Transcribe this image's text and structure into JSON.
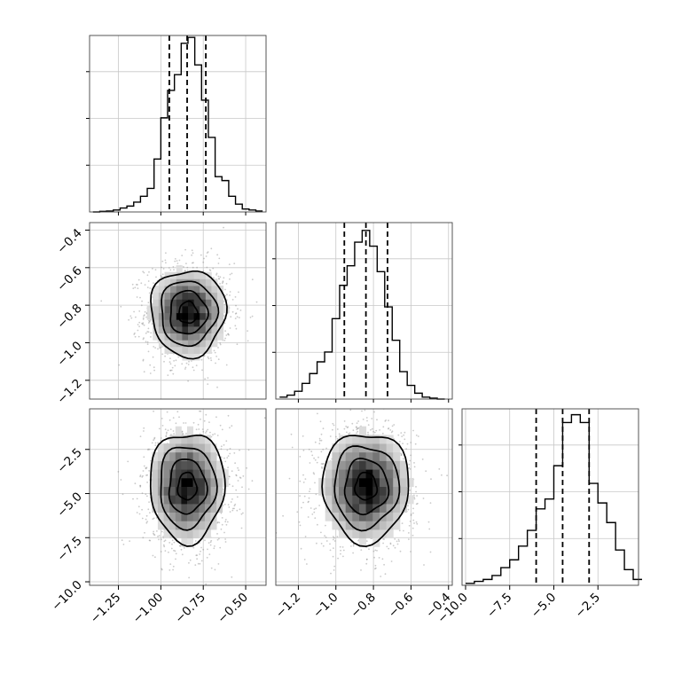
{
  "chart_data": {
    "type": "corner",
    "parameters": [
      {
        "x_range": [
          -1.42,
          -0.38
        ],
        "ticks": [
          -1.25,
          -1.0,
          -0.75,
          -0.5
        ],
        "tick_labels": [
          "−1.25",
          "−1.00",
          "−0.75",
          "−0.50"
        ]
      },
      {
        "x_range": [
          -1.32,
          -0.38
        ],
        "ticks": [
          -1.2,
          -1.0,
          -0.8,
          -0.6,
          -0.4
        ],
        "tick_labels": [
          "−1.2",
          "−1.0",
          "−0.8",
          "−0.6",
          "−0.4"
        ]
      },
      {
        "x_range": [
          -10.2,
          -0.2
        ],
        "ticks": [
          -10.0,
          -7.5,
          -5.0,
          -2.5
        ],
        "tick_labels": [
          "−10.0",
          "−7.5",
          "−5.0",
          "−2.5"
        ]
      }
    ],
    "row_axes": [
      {
        "param": 1,
        "y_range": [
          -1.3,
          -0.36
        ],
        "ticks": [
          -0.4,
          -0.6,
          -0.8,
          -1.0,
          -1.2
        ],
        "tick_labels": [
          "−0.4",
          "−0.6",
          "−0.8",
          "−1.0",
          "−1.2"
        ]
      },
      {
        "param": 2,
        "y_range": [
          -10.2,
          -0.2
        ],
        "ticks": [
          -2.5,
          -5.0,
          -7.5,
          -10.0
        ],
        "tick_labels": [
          "−2.5",
          "−5.0",
          "−7.5",
          "−10.0"
        ]
      }
    ],
    "histograms": [
      {
        "param": 0,
        "bin_edges": [
          -1.4,
          -1.36,
          -1.32,
          -1.28,
          -1.24,
          -1.2,
          -1.16,
          -1.12,
          -1.08,
          -1.04,
          -1.0,
          -0.96,
          -0.92,
          -0.88,
          -0.84,
          -0.8,
          -0.76,
          -0.72,
          -0.68,
          -0.64,
          -0.6,
          -0.56,
          -0.52,
          -0.48,
          -0.44,
          -0.4
        ],
        "counts": [
          0,
          0.3,
          0.5,
          1,
          2,
          3,
          5,
          8,
          12,
          27,
          48,
          62,
          70,
          86,
          89,
          75,
          57,
          38,
          18,
          16,
          8,
          4,
          1.5,
          1,
          0.5
        ],
        "quantiles": [
          -0.95,
          -0.845,
          -0.735
        ],
        "y_max": 90
      },
      {
        "param": 1,
        "bin_edges": [
          -1.3,
          -1.26,
          -1.22,
          -1.18,
          -1.14,
          -1.1,
          -1.06,
          -1.02,
          -0.98,
          -0.94,
          -0.9,
          -0.86,
          -0.82,
          -0.78,
          -0.74,
          -0.7,
          -0.66,
          -0.62,
          -0.58,
          -0.54,
          -0.5,
          -0.46,
          -0.42
        ],
        "counts": [
          1,
          2,
          4,
          8,
          13,
          19,
          24,
          41,
          58,
          68,
          80,
          86,
          78,
          65,
          47,
          30,
          14,
          7,
          3,
          1,
          0.5,
          0
        ],
        "quantiles": [
          -0.955,
          -0.84,
          -0.725
        ],
        "y_max": 90
      },
      {
        "param": 2,
        "bin_edges": [
          -10.0,
          -9.5,
          -9.0,
          -8.5,
          -8.0,
          -7.5,
          -7.0,
          -6.5,
          -6.0,
          -5.5,
          -5.0,
          -4.5,
          -4.0,
          -3.5,
          -3.0,
          -2.5,
          -2.0,
          -1.5,
          -1.0,
          -0.5,
          0.0
        ],
        "counts": [
          1,
          2,
          3,
          5,
          9,
          13,
          20,
          28,
          39,
          44,
          61,
          83,
          87,
          83,
          52,
          42,
          32,
          18,
          8,
          3
        ],
        "quantiles": [
          -6.0,
          -4.5,
          -3.0
        ],
        "y_max": 90
      }
    ],
    "scatter_panels": [
      {
        "x_param": 0,
        "y_param": 1,
        "center": [
          -0.84,
          -0.84
        ],
        "sigma": [
          0.11,
          0.115
        ]
      },
      {
        "x_param": 0,
        "y_param": 2,
        "center": [
          -0.845,
          -4.6
        ],
        "sigma": [
          0.11,
          1.55
        ]
      },
      {
        "x_param": 1,
        "y_param": 2,
        "center": [
          -0.84,
          -4.6
        ],
        "sigma": [
          0.115,
          1.55
        ]
      }
    ],
    "grid": true
  }
}
